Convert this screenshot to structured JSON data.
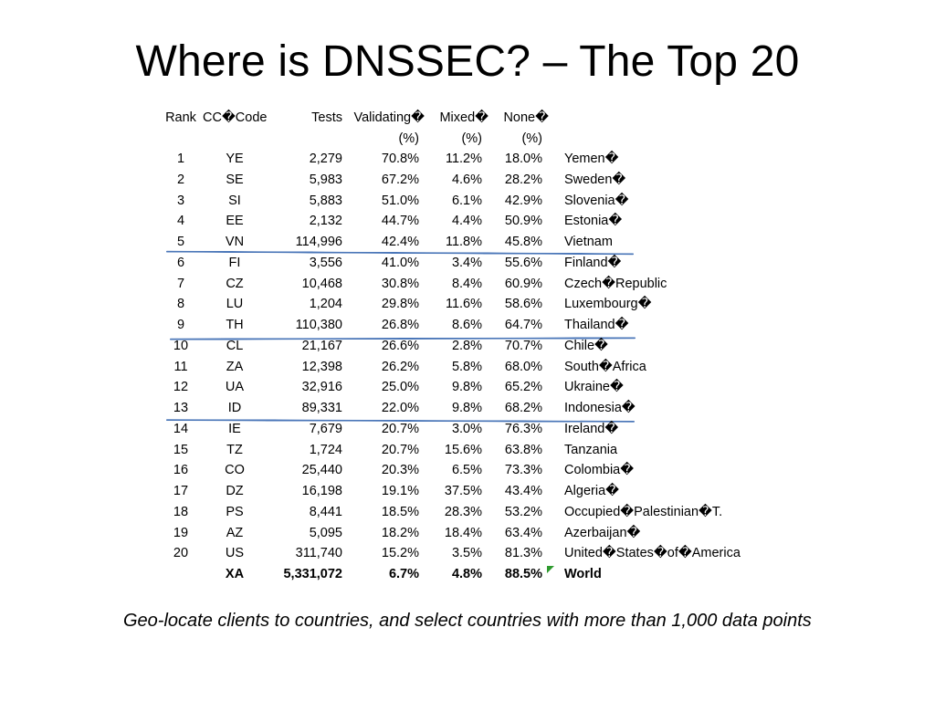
{
  "title": "Where is DNSSEC? – The Top 20",
  "table": {
    "headers": {
      "rank": "Rank",
      "cc": "CC�Code",
      "tests": "Tests",
      "validating": "Validating�",
      "validating_unit": "(%)",
      "mixed": "Mixed�",
      "mixed_unit": "(%)",
      "none": "None�",
      "none_unit": "(%)"
    },
    "rows": [
      {
        "rank": "1",
        "cc": "YE",
        "tests": "2,279",
        "validating": "70.8%",
        "mixed": "11.2%",
        "none": "18.0%",
        "country": "Yemen�"
      },
      {
        "rank": "2",
        "cc": "SE",
        "tests": "5,983",
        "validating": "67.2%",
        "mixed": "4.6%",
        "none": "28.2%",
        "country": "Sweden�"
      },
      {
        "rank": "3",
        "cc": "SI",
        "tests": "5,883",
        "validating": "51.0%",
        "mixed": "6.1%",
        "none": "42.9%",
        "country": "Slovenia�"
      },
      {
        "rank": "4",
        "cc": "EE",
        "tests": "2,132",
        "validating": "44.7%",
        "mixed": "4.4%",
        "none": "50.9%",
        "country": "Estonia�"
      },
      {
        "rank": "5",
        "cc": "VN",
        "tests": "114,996",
        "validating": "42.4%",
        "mixed": "11.8%",
        "none": "45.8%",
        "country": "Vietnam"
      },
      {
        "rank": "6",
        "cc": "FI",
        "tests": "3,556",
        "validating": "41.0%",
        "mixed": "3.4%",
        "none": "55.6%",
        "country": "Finland�"
      },
      {
        "rank": "7",
        "cc": "CZ",
        "tests": "10,468",
        "validating": "30.8%",
        "mixed": "8.4%",
        "none": "60.9%",
        "country": "Czech�Republic"
      },
      {
        "rank": "8",
        "cc": "LU",
        "tests": "1,204",
        "validating": "29.8%",
        "mixed": "11.6%",
        "none": "58.6%",
        "country": "Luxembourg�"
      },
      {
        "rank": "9",
        "cc": "TH",
        "tests": "110,380",
        "validating": "26.8%",
        "mixed": "8.6%",
        "none": "64.7%",
        "country": "Thailand�"
      },
      {
        "rank": "10",
        "cc": "CL",
        "tests": "21,167",
        "validating": "26.6%",
        "mixed": "2.8%",
        "none": "70.7%",
        "country": "Chile�"
      },
      {
        "rank": "11",
        "cc": "ZA",
        "tests": "12,398",
        "validating": "26.2%",
        "mixed": "5.8%",
        "none": "68.0%",
        "country": "South�Africa"
      },
      {
        "rank": "12",
        "cc": "UA",
        "tests": "32,916",
        "validating": "25.0%",
        "mixed": "9.8%",
        "none": "65.2%",
        "country": "Ukraine�"
      },
      {
        "rank": "13",
        "cc": "ID",
        "tests": "89,331",
        "validating": "22.0%",
        "mixed": "9.8%",
        "none": "68.2%",
        "country": "Indonesia�"
      },
      {
        "rank": "14",
        "cc": "IE",
        "tests": "7,679",
        "validating": "20.7%",
        "mixed": "3.0%",
        "none": "76.3%",
        "country": "Ireland�"
      },
      {
        "rank": "15",
        "cc": "TZ",
        "tests": "1,724",
        "validating": "20.7%",
        "mixed": "15.6%",
        "none": "63.8%",
        "country": "Tanzania"
      },
      {
        "rank": "16",
        "cc": "CO",
        "tests": "25,440",
        "validating": "20.3%",
        "mixed": "6.5%",
        "none": "73.3%",
        "country": "Colombia�"
      },
      {
        "rank": "17",
        "cc": "DZ",
        "tests": "16,198",
        "validating": "19.1%",
        "mixed": "37.5%",
        "none": "43.4%",
        "country": "Algeria�"
      },
      {
        "rank": "18",
        "cc": "PS",
        "tests": "8,441",
        "validating": "18.5%",
        "mixed": "28.3%",
        "none": "53.2%",
        "country": "Occupied�Palestinian�T."
      },
      {
        "rank": "19",
        "cc": "AZ",
        "tests": "5,095",
        "validating": "18.2%",
        "mixed": "18.4%",
        "none": "63.4%",
        "country": "Azerbaijan�"
      },
      {
        "rank": "20",
        "cc": "US",
        "tests": "311,740",
        "validating": "15.2%",
        "mixed": "3.5%",
        "none": "81.3%",
        "country": "United�States�of�America"
      }
    ],
    "total": {
      "rank": "",
      "cc": "XA",
      "tests": "5,331,072",
      "validating": "6.7%",
      "mixed": "4.8%",
      "none": "88.5%",
      "country": "World"
    },
    "separator_color": "#4a76b8"
  },
  "footnote": "Geo-locate clients to countries, and select countries with more than 1,000 data points"
}
